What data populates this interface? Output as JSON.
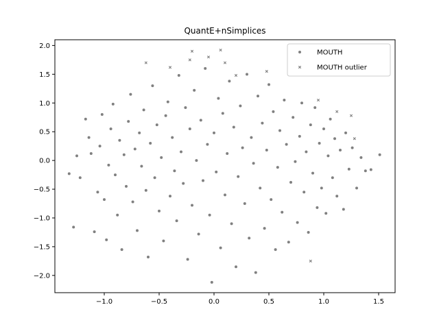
{
  "chart_data": {
    "type": "scatter",
    "title": "QuantE+nSimplices",
    "xlabel": "",
    "ylabel": "",
    "xlim": [
      -1.45,
      1.65
    ],
    "ylim": [
      -2.3,
      2.1
    ],
    "xticks": [
      "−1.0",
      "−0.5",
      "0.0",
      "0.5",
      "1.0",
      "1.5"
    ],
    "xtick_values": [
      -1.0,
      -0.5,
      0.0,
      0.5,
      1.0,
      1.5
    ],
    "yticks": [
      "−2.0",
      "−1.5",
      "−1.0",
      "−0.5",
      "0.0",
      "0.5",
      "1.0",
      "1.5",
      "2.0"
    ],
    "ytick_values": [
      -2.0,
      -1.5,
      -1.0,
      -0.5,
      0.0,
      0.5,
      1.0,
      1.5,
      2.0
    ],
    "grid": false,
    "legend_position": "upper right",
    "series": [
      {
        "name": "MOUTH",
        "marker": "circle",
        "color": "#808080",
        "points": [
          [
            -1.32,
            -0.23
          ],
          [
            -1.28,
            -1.16
          ],
          [
            -1.25,
            0.08
          ],
          [
            -1.22,
            -0.3
          ],
          [
            -1.17,
            0.72
          ],
          [
            -1.14,
            0.4
          ],
          [
            -1.12,
            0.12
          ],
          [
            -1.09,
            -1.24
          ],
          [
            -1.06,
            -0.55
          ],
          [
            -1.04,
            0.25
          ],
          [
            -1.02,
            0.8
          ],
          [
            -1.0,
            -0.68
          ],
          [
            -0.98,
            -1.38
          ],
          [
            -0.96,
            -0.08
          ],
          [
            -0.94,
            0.55
          ],
          [
            -0.92,
            0.98
          ],
          [
            -0.9,
            -0.25
          ],
          [
            -0.88,
            -0.95
          ],
          [
            -0.86,
            0.35
          ],
          [
            -0.84,
            -1.55
          ],
          [
            -0.82,
            0.1
          ],
          [
            -0.8,
            -0.45
          ],
          [
            -0.78,
            0.68
          ],
          [
            -0.76,
            1.15
          ],
          [
            -0.74,
            -0.72
          ],
          [
            -0.72,
            0.2
          ],
          [
            -0.7,
            -1.22
          ],
          [
            -0.68,
            0.48
          ],
          [
            -0.66,
            -0.1
          ],
          [
            -0.64,
            0.88
          ],
          [
            -0.62,
            -0.52
          ],
          [
            -0.6,
            -1.68
          ],
          [
            -0.58,
            0.3
          ],
          [
            -0.56,
            1.3
          ],
          [
            -0.54,
            -0.3
          ],
          [
            -0.52,
            0.62
          ],
          [
            -0.5,
            -0.88
          ],
          [
            -0.48,
            0.05
          ],
          [
            -0.46,
            -1.4
          ],
          [
            -0.44,
            0.78
          ],
          [
            -0.42,
            1.02
          ],
          [
            -0.4,
            -0.62
          ],
          [
            -0.38,
            0.4
          ],
          [
            -0.36,
            -0.18
          ],
          [
            -0.34,
            -1.05
          ],
          [
            -0.32,
            1.48
          ],
          [
            -0.3,
            0.15
          ],
          [
            -0.28,
            -0.4
          ],
          [
            -0.26,
            0.92
          ],
          [
            -0.24,
            -1.72
          ],
          [
            -0.22,
            0.55
          ],
          [
            -0.2,
            -0.78
          ],
          [
            -0.18,
            1.22
          ],
          [
            -0.16,
            0.0
          ],
          [
            -0.14,
            -1.28
          ],
          [
            -0.12,
            0.7
          ],
          [
            -0.1,
            -0.35
          ],
          [
            -0.08,
            1.6
          ],
          [
            -0.06,
            0.28
          ],
          [
            -0.04,
            -0.95
          ],
          [
            -0.02,
            -2.12
          ],
          [
            0.0,
            0.48
          ],
          [
            0.02,
            -0.2
          ],
          [
            0.04,
            1.08
          ],
          [
            0.06,
            -1.52
          ],
          [
            0.08,
            0.82
          ],
          [
            0.1,
            -0.6
          ],
          [
            0.12,
            0.12
          ],
          [
            0.14,
            1.38
          ],
          [
            0.16,
            -1.1
          ],
          [
            0.18,
            0.58
          ],
          [
            0.2,
            -1.85
          ],
          [
            0.22,
            -0.28
          ],
          [
            0.24,
            0.95
          ],
          [
            0.26,
            0.22
          ],
          [
            0.28,
            -0.75
          ],
          [
            0.3,
            1.5
          ],
          [
            0.32,
            -1.35
          ],
          [
            0.34,
            0.4
          ],
          [
            0.36,
            -0.05
          ],
          [
            0.38,
            -1.95
          ],
          [
            0.4,
            1.12
          ],
          [
            0.42,
            -0.48
          ],
          [
            0.44,
            0.65
          ],
          [
            0.46,
            -1.18
          ],
          [
            0.48,
            0.18
          ],
          [
            0.5,
            1.32
          ],
          [
            0.52,
            -0.68
          ],
          [
            0.54,
            0.85
          ],
          [
            0.56,
            -1.55
          ],
          [
            0.58,
            -0.12
          ],
          [
            0.6,
            0.52
          ],
          [
            0.62,
            -0.9
          ],
          [
            0.64,
            1.05
          ],
          [
            0.66,
            0.28
          ],
          [
            0.68,
            -1.42
          ],
          [
            0.7,
            -0.38
          ],
          [
            0.72,
            0.75
          ],
          [
            0.74,
            -0.02
          ],
          [
            0.76,
            -1.08
          ],
          [
            0.78,
            0.42
          ],
          [
            0.8,
            1.0
          ],
          [
            0.82,
            -0.55
          ],
          [
            0.84,
            0.15
          ],
          [
            0.86,
            -1.25
          ],
          [
            0.88,
            0.62
          ],
          [
            0.9,
            -0.22
          ],
          [
            0.92,
            0.92
          ],
          [
            0.94,
            -0.82
          ],
          [
            0.96,
            0.3
          ],
          [
            0.98,
            -0.48
          ],
          [
            1.0,
            0.55
          ],
          [
            1.02,
            -0.92
          ],
          [
            1.04,
            0.08
          ],
          [
            1.06,
            0.72
          ],
          [
            1.08,
            -0.3
          ],
          [
            1.1,
            0.38
          ],
          [
            1.12,
            -0.62
          ],
          [
            1.15,
            0.18
          ],
          [
            1.18,
            -0.85
          ],
          [
            1.2,
            0.48
          ],
          [
            1.23,
            -0.15
          ],
          [
            1.26,
            0.22
          ],
          [
            1.3,
            -0.48
          ],
          [
            1.34,
            0.05
          ],
          [
            1.38,
            -0.18
          ],
          [
            1.43,
            -0.16
          ],
          [
            1.51,
            0.1
          ]
        ]
      },
      {
        "name": "MOUTH outlier",
        "marker": "x",
        "color": "#808080",
        "points": [
          [
            -0.62,
            1.7
          ],
          [
            -0.4,
            1.62
          ],
          [
            -0.2,
            1.9
          ],
          [
            -0.05,
            1.8
          ],
          [
            0.06,
            1.92
          ],
          [
            0.2,
            1.48
          ],
          [
            0.48,
            1.55
          ],
          [
            0.95,
            1.05
          ],
          [
            1.12,
            0.85
          ],
          [
            1.25,
            0.78
          ],
          [
            1.28,
            0.38
          ],
          [
            -0.22,
            1.75
          ],
          [
            0.1,
            1.7
          ],
          [
            0.88,
            -1.75
          ]
        ]
      }
    ]
  }
}
